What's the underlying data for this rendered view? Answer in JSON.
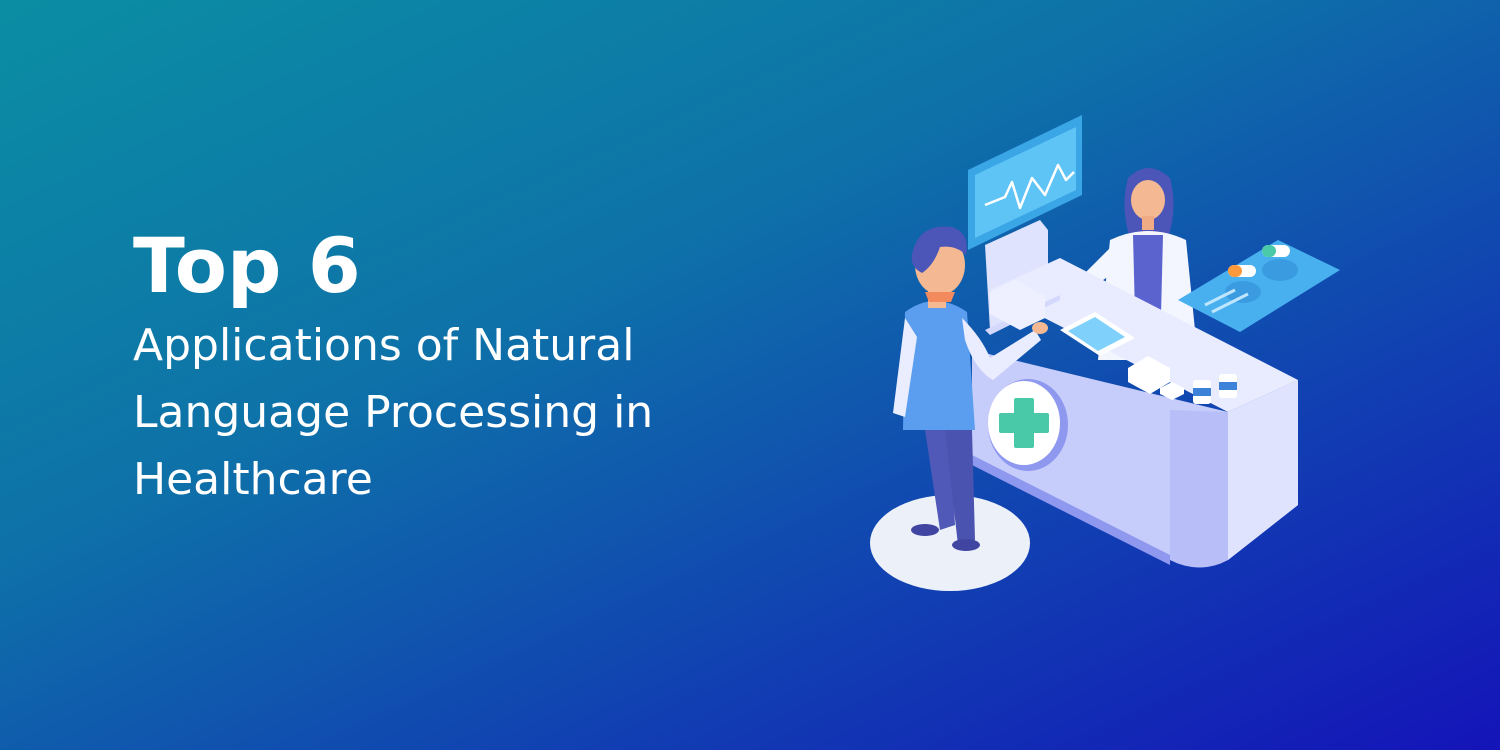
{
  "banner": {
    "headline": "Top 6",
    "subline_1": "Applications of Natural",
    "subline_2": "Language Processing in",
    "subline_3": "Healthcare"
  },
  "illustration": {
    "subject": "doctor-patient-reception-desk",
    "icons": [
      "monitor-heartbeat-icon",
      "medical-cross-icon",
      "pill-icon",
      "tablet-icon",
      "medicine-bottle-icon",
      "clipboard-icon"
    ],
    "colors": {
      "desk": "#c7cdfa",
      "desk_shadow": "#8e98ef",
      "cross": "#49c9a8",
      "screen": "#46b4f0",
      "pill_orange": "#ff9a3c"
    }
  }
}
